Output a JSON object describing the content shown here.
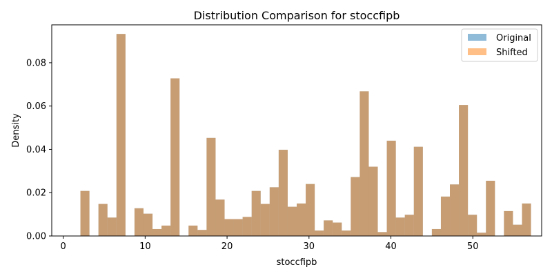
{
  "chart_data": {
    "type": "bar",
    "title": "Distribution Comparison for stoccfipb",
    "xlabel": "stoccfipb",
    "ylabel": "Density",
    "xlim": [
      -1.4,
      58.4
    ],
    "ylim": [
      0,
      0.0975
    ],
    "x_ticks": [
      0,
      10,
      20,
      30,
      40,
      50
    ],
    "y_ticks": [
      0.0,
      0.02,
      0.04,
      0.06,
      0.08
    ],
    "y_tick_labels": [
      "0.00",
      "0.02",
      "0.04",
      "0.06",
      "0.08"
    ],
    "bin_start": 1.0,
    "bin_width": 1.1,
    "legend_position": "top-right",
    "colors": {
      "original": "#1f77b4",
      "shifted": "#ff7f0e",
      "overlap": "#c49a6c"
    },
    "series": [
      {
        "name": "Original",
        "values": [
          0.0,
          0.0208,
          0.0,
          0.0148,
          0.0085,
          0.0933,
          0.0,
          0.0128,
          0.0103,
          0.0032,
          0.0048,
          0.0728,
          0.0,
          0.0048,
          0.0028,
          0.0453,
          0.0168,
          0.0078,
          0.0078,
          0.0088,
          0.0208,
          0.0148,
          0.0225,
          0.0398,
          0.0135,
          0.015,
          0.024,
          0.0025,
          0.0072,
          0.0062,
          0.0025,
          0.0272,
          0.0668,
          0.032,
          0.0018,
          0.044,
          0.0085,
          0.0098,
          0.0412,
          0.0,
          0.0032,
          0.0182,
          0.0238,
          0.0605,
          0.0098,
          0.0015,
          0.0255,
          0.0,
          0.0115,
          0.0052,
          0.015
        ]
      },
      {
        "name": "Shifted",
        "values": [
          0.0,
          0.0208,
          0.0,
          0.0148,
          0.0085,
          0.0933,
          0.0,
          0.0128,
          0.0103,
          0.0032,
          0.0048,
          0.0728,
          0.0,
          0.0048,
          0.0028,
          0.0453,
          0.0168,
          0.0078,
          0.0078,
          0.0088,
          0.0208,
          0.0148,
          0.0225,
          0.0398,
          0.0135,
          0.015,
          0.024,
          0.0025,
          0.0072,
          0.0062,
          0.0025,
          0.0272,
          0.0668,
          0.032,
          0.0018,
          0.044,
          0.0085,
          0.0098,
          0.0412,
          0.0,
          0.0032,
          0.0182,
          0.0238,
          0.0605,
          0.0098,
          0.0015,
          0.0255,
          0.0,
          0.0115,
          0.0052,
          0.015
        ]
      }
    ]
  }
}
